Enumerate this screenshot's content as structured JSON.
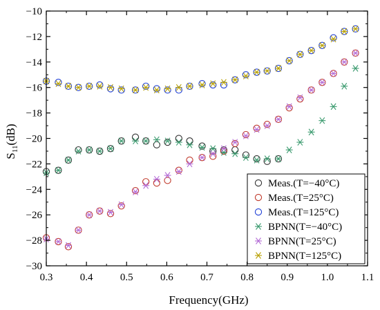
{
  "chart_data": {
    "type": "scatter",
    "xlabel": "Frequency(GHz)",
    "ylabel": "S",
    "ylabel_sub": "11",
    "ylabel_unit": "(dB)",
    "xlim": [
      0.3,
      1.1
    ],
    "ylim": [
      -30,
      -10
    ],
    "xticks": [
      0.3,
      0.4,
      0.5,
      0.6,
      0.7,
      0.8,
      0.9,
      1.0,
      1.1
    ],
    "xtick_labels": [
      "0.3",
      "0.4",
      "0.5",
      "0.6",
      "0.7",
      "0.8",
      "0.9",
      "1.0",
      "1.1"
    ],
    "yticks": [
      -30,
      -28,
      -26,
      -24,
      -22,
      -20,
      -18,
      -16,
      -14,
      -12,
      -10
    ],
    "ytick_labels": [
      "−30",
      "−28",
      "−26",
      "−24",
      "−22",
      "−20",
      "−18",
      "−16",
      "−14",
      "−12",
      "−10"
    ],
    "grid": false,
    "legend_position": "bottom-right",
    "x": [
      0.3,
      0.33,
      0.355,
      0.38,
      0.407,
      0.433,
      0.46,
      0.487,
      0.522,
      0.548,
      0.575,
      0.602,
      0.63,
      0.657,
      0.688,
      0.715,
      0.742,
      0.77,
      0.797,
      0.824,
      0.85,
      0.878,
      0.905,
      0.932,
      0.96,
      0.987,
      1.015,
      1.042,
      1.07
    ],
    "series": [
      {
        "name": "Meas.(T=−40°C)",
        "marker": "circle",
        "color": "#303030",
        "values": [
          -22.6,
          -22.5,
          -21.7,
          -20.9,
          -20.9,
          -21.0,
          -20.8,
          -20.2,
          -19.9,
          -20.2,
          -20.5,
          -20.3,
          -20.0,
          -20.2,
          -20.6,
          -21.0,
          -20.9,
          -20.9,
          -21.3,
          -21.6,
          -21.8,
          -21.6,
          null,
          null,
          null,
          null,
          null,
          null,
          null
        ]
      },
      {
        "name": "Meas.(T=25°C)",
        "marker": "circle",
        "color": "#c0392b",
        "values": [
          -27.8,
          -28.1,
          -28.5,
          -27.2,
          -26.0,
          -25.7,
          -25.9,
          -25.3,
          -24.1,
          -23.4,
          -23.5,
          -23.3,
          -22.5,
          -21.7,
          -21.5,
          -21.4,
          -21.0,
          -20.4,
          -19.7,
          -19.2,
          -18.9,
          -18.5,
          -17.6,
          -16.9,
          -16.2,
          -15.6,
          -14.9,
          -14.0,
          -13.3
        ]
      },
      {
        "name": "Meas.(T=125°C)",
        "marker": "circle",
        "color": "#1f3fd6",
        "values": [
          -15.5,
          -15.6,
          -15.9,
          -16.0,
          -15.9,
          -15.8,
          -16.1,
          -16.2,
          -16.2,
          -15.9,
          -16.1,
          -16.2,
          -16.2,
          -15.9,
          -15.7,
          -15.8,
          -15.8,
          -15.4,
          -15.0,
          -14.8,
          -14.7,
          -14.5,
          -13.9,
          -13.4,
          -13.1,
          -12.7,
          -12.1,
          -11.6,
          -11.4
        ]
      },
      {
        "name": "BPNN(T=−40°C)",
        "marker": "star",
        "color": "#3a9a6e",
        "values": [
          -22.7,
          -22.5,
          -21.7,
          -21.0,
          -20.9,
          -21.0,
          -20.8,
          -20.2,
          -20.2,
          -20.2,
          -20.1,
          -20.2,
          -20.3,
          -20.5,
          -20.7,
          -20.8,
          -21.1,
          -21.2,
          -21.5,
          -21.7,
          -21.6,
          -21.6,
          -20.9,
          -20.3,
          -19.5,
          -18.6,
          -17.5,
          -15.9,
          -14.5
        ]
      },
      {
        "name": "BPNN(T=25°C)",
        "marker": "star",
        "color": "#b36bd6",
        "values": [
          -27.9,
          -28.1,
          -28.4,
          -27.2,
          -26.0,
          -25.7,
          -25.8,
          -25.2,
          -24.2,
          -23.7,
          -23.2,
          -22.9,
          -22.6,
          -22.0,
          -21.5,
          -21.2,
          -20.8,
          -20.3,
          -19.8,
          -19.3,
          -19.0,
          -18.5,
          -17.5,
          -16.8,
          -16.2,
          -15.6,
          -14.9,
          -14.0,
          -13.3
        ]
      },
      {
        "name": "BPNN(T=125°C)",
        "marker": "star",
        "color": "#b8a000",
        "values": [
          -15.5,
          -15.7,
          -15.9,
          -16.0,
          -15.9,
          -15.9,
          -16.0,
          -16.1,
          -16.2,
          -16.0,
          -16.2,
          -16.1,
          -16.0,
          -15.9,
          -15.8,
          -15.7,
          -15.6,
          -15.4,
          -15.1,
          -14.8,
          -14.7,
          -14.5,
          -13.9,
          -13.4,
          -13.1,
          -12.7,
          -12.2,
          -11.6,
          -11.4
        ]
      }
    ]
  }
}
